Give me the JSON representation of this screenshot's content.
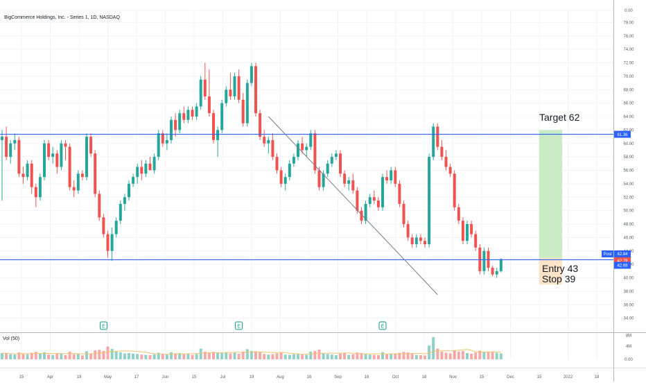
{
  "header": {
    "title": "BigCommerce Holdings, Inc. - Series 1, 1D, NASDAQ"
  },
  "volume_label": "Vol (50)",
  "annotations": {
    "target": "Target 62",
    "entry": "Entry 43",
    "stop": "Stop 39",
    "earnings_marker": "E"
  },
  "price_axis": {
    "ticks": [
      "0.00",
      "78.00",
      "76.00",
      "74.00",
      "72.00",
      "70.00",
      "68.00",
      "66.00",
      "64.00",
      "62.00",
      "60.00",
      "58.00",
      "56.00",
      "54.00",
      "52.00",
      "50.00",
      "48.00",
      "46.00",
      "44.00",
      "42.00",
      "40.00",
      "38.00",
      "36.00",
      "34.00"
    ],
    "badges": {
      "level_top": "61.36",
      "post_label": "Post",
      "post_price": "42.84",
      "last": "42.79",
      "level_bottom": "42.69"
    }
  },
  "volume_axis": {
    "ticks": [
      "8M",
      "4M",
      "0.00"
    ]
  },
  "time_axis": {
    "ticks": [
      "15",
      "Apr",
      "19",
      "May",
      "17",
      "Jun",
      "15",
      "Jul",
      "19",
      "Aug",
      "16",
      "Sep",
      "16",
      "Oct",
      "18",
      "Nov",
      "15",
      "Dec",
      "15",
      "2022",
      "18"
    ]
  },
  "colors": {
    "up": "#26a69a",
    "down": "#ef5350",
    "level_line": "#2962ff",
    "target_zone": "#c8ebc4",
    "stop_zone": "#fbe3c8",
    "badge_blue": "#2962ff",
    "badge_red": "#ef5350"
  },
  "chart_data": {
    "type": "candlestick",
    "title": "BigCommerce Holdings, Inc. - Series 1, 1D, NASDAQ",
    "y_range": [
      32,
      80
    ],
    "horizontal_levels": [
      61.36,
      42.69
    ],
    "trendline": {
      "from": [
        63,
        64
      ],
      "to": [
        103,
        37.5
      ]
    },
    "position": {
      "entry": 43,
      "target": 62,
      "stop": 39
    },
    "earnings_events": [
      24,
      56,
      90
    ],
    "last_close": 42.79,
    "post_price": 42.84,
    "series": [
      {
        "o": 60.5,
        "h": 62.0,
        "l": 51.5,
        "c": 61.0,
        "v": 2.1
      },
      {
        "o": 61.0,
        "h": 62.5,
        "l": 57.5,
        "c": 58.0,
        "v": 1.9
      },
      {
        "o": 58.0,
        "h": 60.5,
        "l": 57.0,
        "c": 60.0,
        "v": 1.7
      },
      {
        "o": 60.0,
        "h": 61.5,
        "l": 59.0,
        "c": 60.5,
        "v": 1.6
      },
      {
        "o": 60.5,
        "h": 61.0,
        "l": 55.0,
        "c": 55.5,
        "v": 2.3
      },
      {
        "o": 55.5,
        "h": 56.5,
        "l": 54.0,
        "c": 55.0,
        "v": 1.8
      },
      {
        "o": 55.0,
        "h": 57.5,
        "l": 54.5,
        "c": 57.0,
        "v": 1.7
      },
      {
        "o": 57.0,
        "h": 57.5,
        "l": 52.5,
        "c": 53.5,
        "v": 2.2
      },
      {
        "o": 53.5,
        "h": 54.0,
        "l": 50.5,
        "c": 52.0,
        "v": 2.5
      },
      {
        "o": 52.0,
        "h": 55.5,
        "l": 51.5,
        "c": 55.0,
        "v": 1.9
      },
      {
        "o": 55.0,
        "h": 60.5,
        "l": 54.5,
        "c": 60.0,
        "v": 2.4
      },
      {
        "o": 60.0,
        "h": 60.5,
        "l": 57.5,
        "c": 58.0,
        "v": 1.6
      },
      {
        "o": 58.0,
        "h": 59.5,
        "l": 57.0,
        "c": 58.5,
        "v": 1.5
      },
      {
        "o": 58.5,
        "h": 59.0,
        "l": 55.5,
        "c": 56.5,
        "v": 1.8
      },
      {
        "o": 56.5,
        "h": 60.5,
        "l": 56.0,
        "c": 60.0,
        "v": 1.9
      },
      {
        "o": 60.0,
        "h": 60.5,
        "l": 57.5,
        "c": 59.5,
        "v": 1.4
      },
      {
        "o": 59.5,
        "h": 60.0,
        "l": 53.0,
        "c": 53.5,
        "v": 2.6
      },
      {
        "o": 53.5,
        "h": 54.5,
        "l": 52.0,
        "c": 53.0,
        "v": 1.7
      },
      {
        "o": 53.0,
        "h": 56.0,
        "l": 52.5,
        "c": 55.5,
        "v": 1.8
      },
      {
        "o": 55.5,
        "h": 56.0,
        "l": 54.5,
        "c": 55.0,
        "v": 1.3
      },
      {
        "o": 55.0,
        "h": 61.5,
        "l": 54.5,
        "c": 61.0,
        "v": 2.7
      },
      {
        "o": 61.0,
        "h": 61.5,
        "l": 58.0,
        "c": 58.5,
        "v": 1.9
      },
      {
        "o": 58.5,
        "h": 59.0,
        "l": 52.0,
        "c": 52.5,
        "v": 3.0
      },
      {
        "o": 52.5,
        "h": 53.0,
        "l": 48.5,
        "c": 49.0,
        "v": 3.2
      },
      {
        "o": 49.0,
        "h": 49.5,
        "l": 46.0,
        "c": 46.5,
        "v": 2.8
      },
      {
        "o": 46.5,
        "h": 47.0,
        "l": 43.0,
        "c": 44.0,
        "v": 4.3
      },
      {
        "o": 44.0,
        "h": 47.5,
        "l": 42.5,
        "c": 46.5,
        "v": 3.5
      },
      {
        "o": 46.5,
        "h": 49.0,
        "l": 46.0,
        "c": 48.5,
        "v": 2.6
      },
      {
        "o": 48.5,
        "h": 51.5,
        "l": 48.0,
        "c": 51.0,
        "v": 2.4
      },
      {
        "o": 51.0,
        "h": 52.5,
        "l": 50.0,
        "c": 52.0,
        "v": 2.0
      },
      {
        "o": 52.0,
        "h": 54.5,
        "l": 51.5,
        "c": 54.0,
        "v": 2.1
      },
      {
        "o": 54.0,
        "h": 55.5,
        "l": 53.5,
        "c": 55.0,
        "v": 1.9
      },
      {
        "o": 55.0,
        "h": 57.0,
        "l": 54.0,
        "c": 56.5,
        "v": 1.8
      },
      {
        "o": 56.5,
        "h": 57.5,
        "l": 54.5,
        "c": 55.5,
        "v": 1.6
      },
      {
        "o": 55.5,
        "h": 57.5,
        "l": 55.0,
        "c": 57.0,
        "v": 1.5
      },
      {
        "o": 57.0,
        "h": 58.0,
        "l": 56.0,
        "c": 56.0,
        "v": 1.4
      },
      {
        "o": 56.0,
        "h": 58.5,
        "l": 55.5,
        "c": 58.0,
        "v": 1.7
      },
      {
        "o": 58.0,
        "h": 62.0,
        "l": 57.5,
        "c": 61.5,
        "v": 2.2
      },
      {
        "o": 61.5,
        "h": 62.0,
        "l": 59.5,
        "c": 60.0,
        "v": 1.8
      },
      {
        "o": 60.0,
        "h": 61.5,
        "l": 59.0,
        "c": 60.5,
        "v": 1.6
      },
      {
        "o": 60.5,
        "h": 64.0,
        "l": 60.0,
        "c": 63.5,
        "v": 2.4
      },
      {
        "o": 63.5,
        "h": 64.5,
        "l": 61.0,
        "c": 62.0,
        "v": 2.0
      },
      {
        "o": 62.0,
        "h": 65.0,
        "l": 61.5,
        "c": 64.5,
        "v": 2.1
      },
      {
        "o": 64.5,
        "h": 65.5,
        "l": 63.0,
        "c": 63.5,
        "v": 1.7
      },
      {
        "o": 63.5,
        "h": 65.5,
        "l": 63.0,
        "c": 65.0,
        "v": 1.9
      },
      {
        "o": 65.0,
        "h": 65.5,
        "l": 63.5,
        "c": 64.0,
        "v": 1.5
      },
      {
        "o": 64.0,
        "h": 66.0,
        "l": 63.5,
        "c": 65.5,
        "v": 1.8
      },
      {
        "o": 65.5,
        "h": 70.0,
        "l": 65.0,
        "c": 69.5,
        "v": 3.6
      },
      {
        "o": 69.5,
        "h": 72.0,
        "l": 66.5,
        "c": 67.0,
        "v": 2.6
      },
      {
        "o": 67.0,
        "h": 71.0,
        "l": 64.0,
        "c": 64.5,
        "v": 2.3
      },
      {
        "o": 64.5,
        "h": 65.0,
        "l": 60.0,
        "c": 60.5,
        "v": 2.5
      },
      {
        "o": 60.5,
        "h": 62.5,
        "l": 58.0,
        "c": 62.0,
        "v": 2.2
      },
      {
        "o": 62.0,
        "h": 66.5,
        "l": 61.5,
        "c": 66.0,
        "v": 2.1
      },
      {
        "o": 66.0,
        "h": 68.5,
        "l": 65.5,
        "c": 68.0,
        "v": 2.4
      },
      {
        "o": 68.0,
        "h": 70.5,
        "l": 66.5,
        "c": 67.0,
        "v": 2.0
      },
      {
        "o": 67.0,
        "h": 70.5,
        "l": 66.5,
        "c": 70.0,
        "v": 2.2
      },
      {
        "o": 70.0,
        "h": 71.0,
        "l": 66.0,
        "c": 66.5,
        "v": 1.9
      },
      {
        "o": 66.5,
        "h": 67.5,
        "l": 62.5,
        "c": 63.0,
        "v": 2.6
      },
      {
        "o": 63.0,
        "h": 69.5,
        "l": 62.5,
        "c": 69.0,
        "v": 3.4
      },
      {
        "o": 69.0,
        "h": 72.0,
        "l": 68.5,
        "c": 71.5,
        "v": 2.8
      },
      {
        "o": 71.5,
        "h": 72.0,
        "l": 64.0,
        "c": 64.5,
        "v": 2.7
      },
      {
        "o": 64.5,
        "h": 65.0,
        "l": 60.5,
        "c": 61.0,
        "v": 2.3
      },
      {
        "o": 61.0,
        "h": 62.0,
        "l": 59.5,
        "c": 60.0,
        "v": 1.8
      },
      {
        "o": 60.0,
        "h": 61.0,
        "l": 58.5,
        "c": 60.5,
        "v": 1.6
      },
      {
        "o": 60.5,
        "h": 61.5,
        "l": 57.5,
        "c": 58.0,
        "v": 1.7
      },
      {
        "o": 58.0,
        "h": 58.5,
        "l": 55.5,
        "c": 56.0,
        "v": 2.0
      },
      {
        "o": 56.0,
        "h": 56.5,
        "l": 53.5,
        "c": 54.0,
        "v": 2.4
      },
      {
        "o": 54.0,
        "h": 55.5,
        "l": 53.0,
        "c": 55.0,
        "v": 1.6
      },
      {
        "o": 55.0,
        "h": 57.5,
        "l": 54.5,
        "c": 57.0,
        "v": 1.5
      },
      {
        "o": 57.0,
        "h": 58.5,
        "l": 56.5,
        "c": 58.0,
        "v": 1.7
      },
      {
        "o": 58.0,
        "h": 60.5,
        "l": 57.5,
        "c": 60.0,
        "v": 1.8
      },
      {
        "o": 60.0,
        "h": 61.0,
        "l": 58.5,
        "c": 59.0,
        "v": 1.6
      },
      {
        "o": 59.0,
        "h": 60.0,
        "l": 58.0,
        "c": 59.5,
        "v": 1.5
      },
      {
        "o": 59.5,
        "h": 62.0,
        "l": 59.0,
        "c": 61.5,
        "v": 2.6
      },
      {
        "o": 61.5,
        "h": 62.0,
        "l": 55.5,
        "c": 56.0,
        "v": 2.8
      },
      {
        "o": 56.0,
        "h": 56.5,
        "l": 53.0,
        "c": 53.5,
        "v": 3.3
      },
      {
        "o": 53.5,
        "h": 56.0,
        "l": 53.0,
        "c": 55.5,
        "v": 2.1
      },
      {
        "o": 55.5,
        "h": 57.5,
        "l": 55.0,
        "c": 57.0,
        "v": 1.8
      },
      {
        "o": 57.0,
        "h": 58.5,
        "l": 56.5,
        "c": 58.0,
        "v": 1.6
      },
      {
        "o": 58.0,
        "h": 59.0,
        "l": 57.5,
        "c": 58.5,
        "v": 1.4
      },
      {
        "o": 58.5,
        "h": 59.0,
        "l": 55.0,
        "c": 55.5,
        "v": 1.9
      },
      {
        "o": 55.5,
        "h": 56.0,
        "l": 53.5,
        "c": 54.0,
        "v": 2.2
      },
      {
        "o": 54.0,
        "h": 55.0,
        "l": 53.0,
        "c": 54.5,
        "v": 1.5
      },
      {
        "o": 54.5,
        "h": 55.5,
        "l": 52.5,
        "c": 53.0,
        "v": 1.7
      },
      {
        "o": 53.0,
        "h": 53.5,
        "l": 49.5,
        "c": 50.0,
        "v": 2.3
      },
      {
        "o": 50.0,
        "h": 50.5,
        "l": 48.0,
        "c": 48.5,
        "v": 2.1
      },
      {
        "o": 48.5,
        "h": 51.5,
        "l": 48.0,
        "c": 51.0,
        "v": 1.8
      },
      {
        "o": 51.0,
        "h": 52.5,
        "l": 50.5,
        "c": 52.0,
        "v": 1.6
      },
      {
        "o": 52.0,
        "h": 53.0,
        "l": 51.0,
        "c": 51.5,
        "v": 1.5
      },
      {
        "o": 51.5,
        "h": 52.0,
        "l": 50.0,
        "c": 50.5,
        "v": 1.4
      },
      {
        "o": 50.5,
        "h": 55.5,
        "l": 50.0,
        "c": 55.0,
        "v": 2.4
      },
      {
        "o": 55.0,
        "h": 56.0,
        "l": 54.0,
        "c": 54.5,
        "v": 1.7
      },
      {
        "o": 54.5,
        "h": 56.5,
        "l": 54.0,
        "c": 56.0,
        "v": 1.9
      },
      {
        "o": 56.0,
        "h": 56.5,
        "l": 53.5,
        "c": 54.0,
        "v": 1.8
      },
      {
        "o": 54.0,
        "h": 54.5,
        "l": 50.5,
        "c": 51.0,
        "v": 2.2
      },
      {
        "o": 51.0,
        "h": 51.5,
        "l": 47.5,
        "c": 48.0,
        "v": 2.5
      },
      {
        "o": 48.0,
        "h": 48.5,
        "l": 45.5,
        "c": 46.0,
        "v": 2.3
      },
      {
        "o": 46.0,
        "h": 46.5,
        "l": 44.5,
        "c": 45.0,
        "v": 1.9
      },
      {
        "o": 45.0,
        "h": 46.5,
        "l": 44.5,
        "c": 46.0,
        "v": 1.5
      },
      {
        "o": 46.0,
        "h": 46.5,
        "l": 45.0,
        "c": 45.5,
        "v": 1.4
      },
      {
        "o": 45.5,
        "h": 46.0,
        "l": 44.5,
        "c": 45.0,
        "v": 1.3
      },
      {
        "o": 45.0,
        "h": 58.5,
        "l": 44.5,
        "c": 58.0,
        "v": 4.6
      },
      {
        "o": 58.0,
        "h": 63.0,
        "l": 57.5,
        "c": 62.5,
        "v": 7.4
      },
      {
        "o": 62.5,
        "h": 63.0,
        "l": 59.0,
        "c": 59.5,
        "v": 3.6
      },
      {
        "o": 59.5,
        "h": 60.5,
        "l": 57.5,
        "c": 58.0,
        "v": 2.6
      },
      {
        "o": 58.0,
        "h": 59.0,
        "l": 56.0,
        "c": 56.5,
        "v": 2.2
      },
      {
        "o": 56.5,
        "h": 57.0,
        "l": 55.0,
        "c": 55.5,
        "v": 2.0
      },
      {
        "o": 55.5,
        "h": 56.0,
        "l": 50.0,
        "c": 50.5,
        "v": 3.0
      },
      {
        "o": 50.5,
        "h": 51.0,
        "l": 48.0,
        "c": 48.5,
        "v": 2.6
      },
      {
        "o": 48.5,
        "h": 49.0,
        "l": 45.0,
        "c": 45.5,
        "v": 2.8
      },
      {
        "o": 45.5,
        "h": 48.5,
        "l": 45.0,
        "c": 48.0,
        "v": 2.1
      },
      {
        "o": 48.0,
        "h": 48.5,
        "l": 46.0,
        "c": 46.5,
        "v": 1.9
      },
      {
        "o": 46.5,
        "h": 47.0,
        "l": 44.0,
        "c": 44.5,
        "v": 2.3
      },
      {
        "o": 44.5,
        "h": 45.0,
        "l": 40.5,
        "c": 41.0,
        "v": 2.9
      },
      {
        "o": 41.0,
        "h": 44.5,
        "l": 40.5,
        "c": 44.0,
        "v": 2.5
      },
      {
        "o": 44.0,
        "h": 44.5,
        "l": 41.0,
        "c": 41.5,
        "v": 2.4
      },
      {
        "o": 41.5,
        "h": 41.8,
        "l": 40.2,
        "c": 40.5,
        "v": 2.6
      },
      {
        "o": 40.5,
        "h": 41.5,
        "l": 40.0,
        "c": 41.0,
        "v": 2.2
      },
      {
        "o": 41.0,
        "h": 42.9,
        "l": 40.8,
        "c": 42.79,
        "v": 2.0
      }
    ]
  }
}
